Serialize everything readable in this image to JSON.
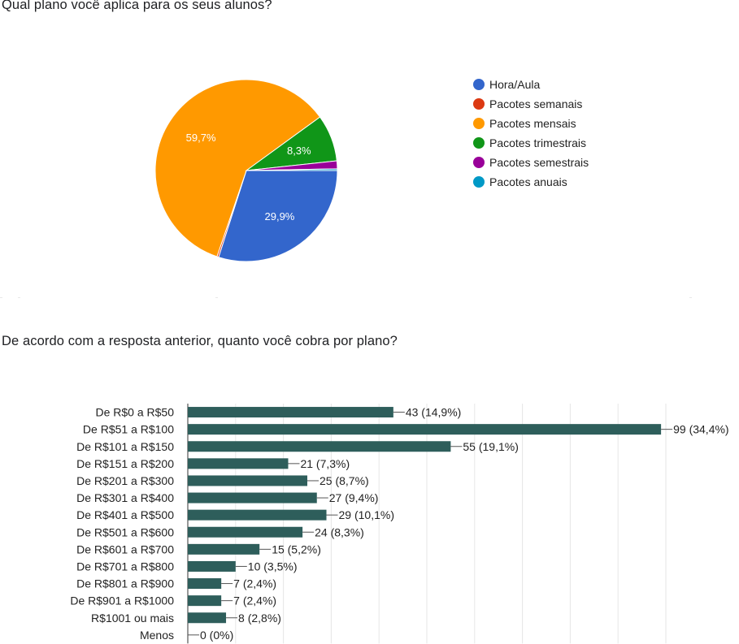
{
  "question1": {
    "title": "Qual plano você aplica para os seus alunos?"
  },
  "question2": {
    "title": "De acordo com a resposta anterior, quanto você cobra por plano?"
  },
  "chart_data": [
    {
      "type": "pie",
      "title": "Qual plano você aplica para os seus alunos?",
      "legend_position": "right",
      "slices": [
        {
          "label": "Hora/Aula",
          "percent": 29.9,
          "display": "29,9%",
          "color": "#3366cc"
        },
        {
          "label": "Pacotes semanais",
          "percent": 0.3,
          "display": "",
          "color": "#dc3912"
        },
        {
          "label": "Pacotes mensais",
          "percent": 59.7,
          "display": "59,7%",
          "color": "#ff9900"
        },
        {
          "label": "Pacotes trimestrais",
          "percent": 8.3,
          "display": "8,3%",
          "color": "#109618"
        },
        {
          "label": "Pacotes semestrais",
          "percent": 1.4,
          "display": "",
          "color": "#990099"
        },
        {
          "label": "Pacotes anuais",
          "percent": 0.3,
          "display": "",
          "color": "#0099c6"
        }
      ]
    },
    {
      "type": "bar",
      "orientation": "horizontal",
      "title": "De acordo com a resposta anterior, quanto você cobra por plano?",
      "bar_color": "#2e5e5b",
      "xlim": [
        0,
        100
      ],
      "grid": true,
      "categories": [
        "De R$0 a R$50",
        "De R$51 a R$100",
        "De R$101 a R$150",
        "De R$151 a R$200",
        "De R$201 a R$300",
        "De R$301 a R$400",
        "De R$401 a R$500",
        "De R$501 a R$600",
        "De R$601 a R$700",
        "De R$701 a R$800",
        "De R$801 a R$900",
        "De R$901 a R$1000",
        "R$1001 ou mais",
        "Menos"
      ],
      "values": [
        43,
        99,
        55,
        21,
        25,
        27,
        29,
        24,
        15,
        10,
        7,
        7,
        8,
        0
      ],
      "labels": [
        "43 (14,9%)",
        "99 (34,4%)",
        "55 (19,1%)",
        "21 (7,3%)",
        "25 (8,7%)",
        "27 (9,4%)",
        "29 (10,1%)",
        "24 (8,3%)",
        "15 (5,2%)",
        "10 (3,5%)",
        "7 (2,4%)",
        "7 (2,4%)",
        "8 (2,8%)",
        "0 (0%)"
      ]
    }
  ]
}
